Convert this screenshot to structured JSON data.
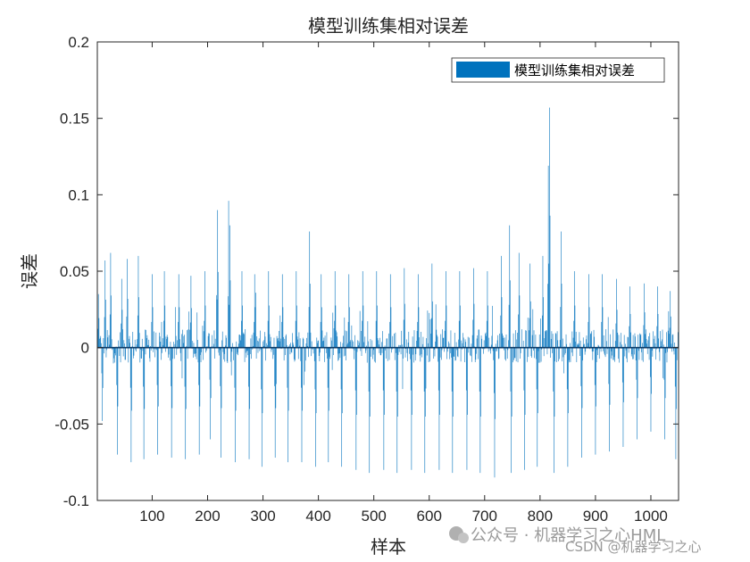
{
  "chart_data": {
    "type": "bar",
    "title": "模型训练集相对误差",
    "xlabel": "样本",
    "ylabel": "误差",
    "legend": {
      "label": "模型训练集相对误差",
      "position": "top-right"
    },
    "xlim": [
      1,
      1050
    ],
    "ylim": [
      -0.1,
      0.2
    ],
    "xticks": [
      100,
      200,
      300,
      400,
      500,
      600,
      700,
      800,
      900,
      1000
    ],
    "yticks": [
      -0.1,
      -0.05,
      0,
      0.05,
      0.1,
      0.15,
      0.2
    ],
    "ytick_labels": [
      "-0.1",
      "-0.05",
      "0",
      "0.05",
      "0.1",
      "0.15",
      "0.2"
    ],
    "grid": false,
    "bar_color": "#0072BD",
    "series": [
      {
        "sample_count": 1050,
        "peaks": [
          [
            1,
            0.062
          ],
          [
            3,
            0.035
          ],
          [
            10,
            -0.048
          ],
          [
            15,
            0.057
          ],
          [
            25,
            0.062
          ],
          [
            37,
            -0.07
          ],
          [
            45,
            0.045
          ],
          [
            55,
            0.058
          ],
          [
            62,
            -0.075
          ],
          [
            75,
            0.06
          ],
          [
            85,
            -0.073
          ],
          [
            100,
            0.048
          ],
          [
            110,
            -0.07
          ],
          [
            122,
            0.05
          ],
          [
            135,
            -0.072
          ],
          [
            148,
            0.048
          ],
          [
            160,
            -0.073
          ],
          [
            170,
            0.047
          ],
          [
            185,
            -0.07
          ],
          [
            195,
            0.05
          ],
          [
            205,
            -0.06
          ],
          [
            217,
            0.098
          ],
          [
            218,
            0.09
          ],
          [
            224,
            -0.072
          ],
          [
            238,
            0.096
          ],
          [
            240,
            0.08
          ],
          [
            250,
            -0.075
          ],
          [
            262,
            0.05
          ],
          [
            275,
            -0.073
          ],
          [
            285,
            0.048
          ],
          [
            298,
            -0.078
          ],
          [
            310,
            0.05
          ],
          [
            322,
            -0.072
          ],
          [
            335,
            0.048
          ],
          [
            345,
            -0.075
          ],
          [
            360,
            0.05
          ],
          [
            370,
            -0.075
          ],
          [
            384,
            0.076
          ],
          [
            395,
            -0.078
          ],
          [
            405,
            0.048
          ],
          [
            418,
            -0.075
          ],
          [
            430,
            0.05
          ],
          [
            442,
            -0.078
          ],
          [
            455,
            0.048
          ],
          [
            468,
            -0.08
          ],
          [
            480,
            0.05
          ],
          [
            492,
            -0.082
          ],
          [
            505,
            0.05
          ],
          [
            518,
            -0.08
          ],
          [
            530,
            0.048
          ],
          [
            542,
            -0.082
          ],
          [
            555,
            0.052
          ],
          [
            568,
            -0.08
          ],
          [
            580,
            0.048
          ],
          [
            592,
            -0.082
          ],
          [
            605,
            0.055
          ],
          [
            618,
            -0.08
          ],
          [
            630,
            0.05
          ],
          [
            642,
            -0.082
          ],
          [
            655,
            0.05
          ],
          [
            668,
            -0.08
          ],
          [
            680,
            0.052
          ],
          [
            692,
            -0.082
          ],
          [
            705,
            0.05
          ],
          [
            718,
            -0.085
          ],
          [
            730,
            0.06
          ],
          [
            745,
            0.08
          ],
          [
            748,
            -0.082
          ],
          [
            762,
            0.062
          ],
          [
            772,
            -0.08
          ],
          [
            782,
            0.055
          ],
          [
            795,
            -0.078
          ],
          [
            805,
            0.06
          ],
          [
            815,
            0.119
          ],
          [
            817,
            0.157
          ],
          [
            825,
            -0.082
          ],
          [
            838,
            0.076
          ],
          [
            850,
            -0.078
          ],
          [
            862,
            0.05
          ],
          [
            875,
            -0.072
          ],
          [
            888,
            0.048
          ],
          [
            900,
            -0.07
          ],
          [
            912,
            0.048
          ],
          [
            925,
            -0.068
          ],
          [
            938,
            0.045
          ],
          [
            950,
            -0.065
          ],
          [
            962,
            0.04
          ],
          [
            975,
            -0.06
          ],
          [
            988,
            0.042
          ],
          [
            1000,
            -0.055
          ],
          [
            1012,
            0.04
          ],
          [
            1025,
            -0.06
          ],
          [
            1035,
            0.037
          ],
          [
            1045,
            -0.073
          ]
        ]
      }
    ]
  },
  "watermark": {
    "line1": "公众号 · 机器学习之心HML",
    "line2": "CSDN @机器学习之心"
  }
}
